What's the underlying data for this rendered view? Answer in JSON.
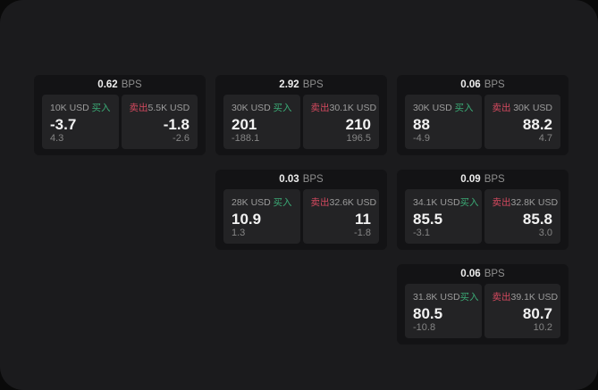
{
  "labels": {
    "buy": "买入",
    "sell": "卖出",
    "bps_unit": "BPS"
  },
  "colors": {
    "buy_green": "#3bab76",
    "sell_red": "#d4495f",
    "surface": "#1b1b1d",
    "card_bg": "#131315",
    "panel_bg": "#232325"
  },
  "cards": [
    {
      "bps": "0.62",
      "buy": {
        "notional": "10K USD",
        "price": "-3.7",
        "delta": "4.3"
      },
      "sell": {
        "notional": "5.5K USD",
        "price": "-1.8",
        "delta": "-2.6"
      }
    },
    {
      "bps": "2.92",
      "buy": {
        "notional": "30K USD",
        "price": "201",
        "delta": "-188.1"
      },
      "sell": {
        "notional": "30.1K USD",
        "price": "210",
        "delta": "196.5"
      }
    },
    {
      "bps": "0.06",
      "buy": {
        "notional": "30K USD",
        "price": "88",
        "delta": "-4.9"
      },
      "sell": {
        "notional": "30K USD",
        "price": "88.2",
        "delta": "4.7"
      }
    },
    {
      "bps": "0.03",
      "buy": {
        "notional": "28K USD",
        "price": "10.9",
        "delta": "1.3"
      },
      "sell": {
        "notional": "32.6K USD",
        "price": "11",
        "delta": "-1.8"
      }
    },
    {
      "bps": "0.09",
      "buy": {
        "notional": "34.1K USD",
        "price": "85.5",
        "delta": "-3.1"
      },
      "sell": {
        "notional": "32.8K USD",
        "price": "85.8",
        "delta": "3.0"
      }
    },
    {
      "bps": "0.06",
      "buy": {
        "notional": "31.8K USD",
        "price": "80.5",
        "delta": "-10.8"
      },
      "sell": {
        "notional": "39.1K USD",
        "price": "80.7",
        "delta": "10.2"
      }
    }
  ]
}
